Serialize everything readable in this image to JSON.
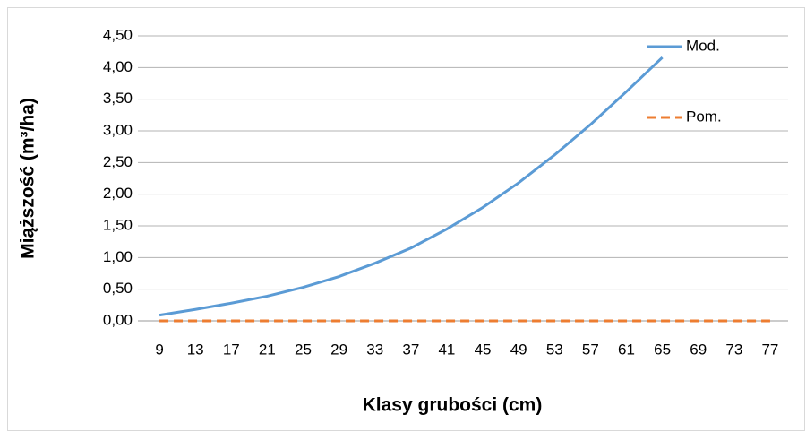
{
  "chart_data": {
    "type": "line",
    "xlabel": "Klasy grubości (cm)",
    "ylabel": "Miąższość (m³/ha)",
    "categories": [
      "9",
      "13",
      "17",
      "21",
      "25",
      "29",
      "33",
      "37",
      "41",
      "45",
      "49",
      "53",
      "57",
      "61",
      "65",
      "69",
      "73",
      "77"
    ],
    "series": [
      {
        "name": "Mod.",
        "color": "#5b9bd5",
        "dash": false,
        "values": [
          0.09,
          0.18,
          0.28,
          0.39,
          0.53,
          0.7,
          0.91,
          1.15,
          1.45,
          1.79,
          2.18,
          2.62,
          3.1,
          3.62,
          4.16,
          null,
          null,
          null
        ]
      },
      {
        "name": "Pom.",
        "color": "#ed7d31",
        "dash": true,
        "values": [
          0,
          0,
          0,
          0,
          0,
          0,
          0,
          0,
          0,
          0,
          0,
          0,
          0,
          0,
          0,
          0,
          0,
          0
        ]
      }
    ],
    "ylim": [
      0,
      4.5
    ],
    "yticks": [
      {
        "value": 0,
        "label": "0,00"
      },
      {
        "value": 0.5,
        "label": "0,50"
      },
      {
        "value": 1,
        "label": "1,00"
      },
      {
        "value": 1.5,
        "label": "1,50"
      },
      {
        "value": 2,
        "label": "2,00"
      },
      {
        "value": 2.5,
        "label": "2,50"
      },
      {
        "value": 3,
        "label": "3,00"
      },
      {
        "value": 3.5,
        "label": "3,50"
      },
      {
        "value": 4,
        "label": "4,00"
      },
      {
        "value": 4.5,
        "label": "4,50"
      }
    ],
    "grid": true,
    "legend": "right"
  }
}
